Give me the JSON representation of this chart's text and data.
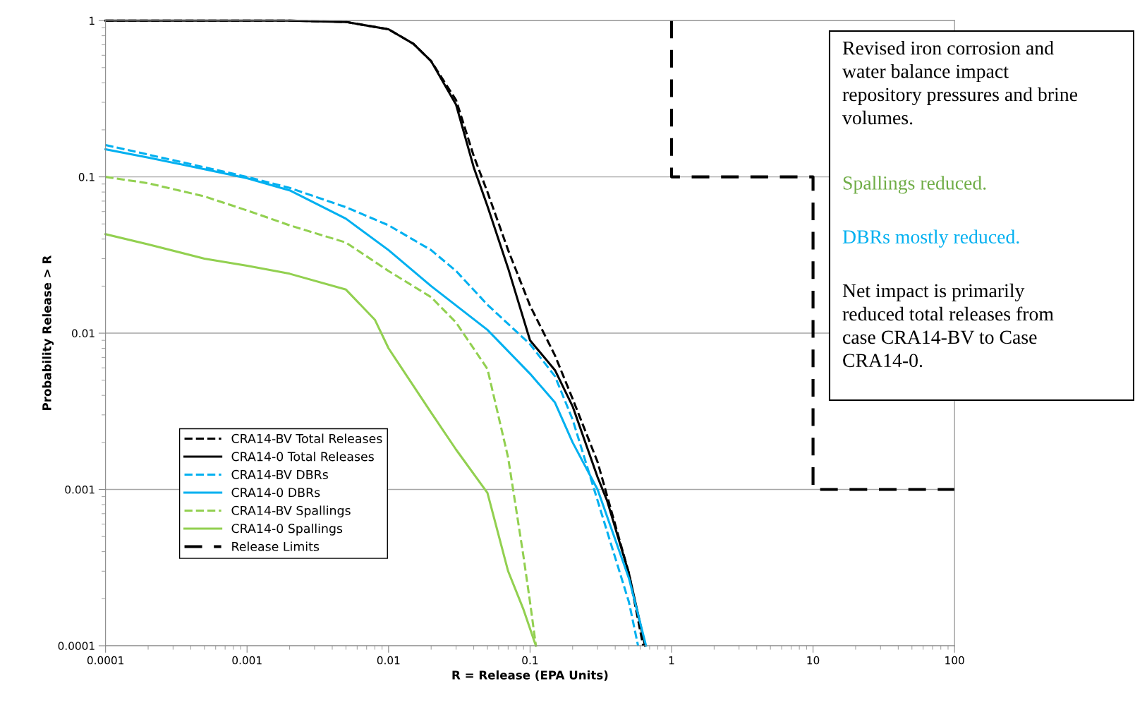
{
  "chart_data": {
    "type": "line",
    "xlabel": "R = Release (EPA Units)",
    "ylabel": "Probability Release > R",
    "log": "xy",
    "xlim": [
      0.0001,
      100
    ],
    "ylim": [
      0.0001,
      1
    ],
    "xticks": [
      0.0001,
      0.001,
      0.01,
      0.1,
      1,
      10,
      100
    ],
    "yticks": [
      0.0001,
      0.001,
      0.01,
      0.1,
      1
    ],
    "grid": "y",
    "legend": "bottom left",
    "series": [
      {
        "name": "CRA14-BV Total Releases",
        "color": "#000000",
        "line_style": "dashed",
        "x": [
          0.0001,
          0.002,
          0.005,
          0.01,
          0.015,
          0.02,
          0.03,
          0.04,
          0.05,
          0.07,
          0.1,
          0.15,
          0.2,
          0.3,
          0.5,
          0.63
        ],
        "values": [
          1,
          1,
          0.98,
          0.88,
          0.71,
          0.55,
          0.31,
          0.136,
          0.08,
          0.034,
          0.015,
          0.0072,
          0.0038,
          0.0015,
          0.00029,
          0.0001
        ]
      },
      {
        "name": "CRA14-0 Total Releases",
        "color": "#000000",
        "line_style": "solid",
        "x": [
          0.0001,
          0.002,
          0.005,
          0.01,
          0.015,
          0.02,
          0.03,
          0.04,
          0.05,
          0.07,
          0.1,
          0.15,
          0.2,
          0.3,
          0.35,
          0.5,
          0.65
        ],
        "values": [
          1,
          1,
          0.98,
          0.88,
          0.71,
          0.55,
          0.29,
          0.115,
          0.065,
          0.026,
          0.009,
          0.0058,
          0.0034,
          0.0012,
          0.00085,
          0.00029,
          0.0001
        ]
      },
      {
        "name": "CRA14-BV DBRs",
        "color": "#00b0f0",
        "line_style": "dashed",
        "x": [
          0.0001,
          0.001,
          0.002,
          0.005,
          0.01,
          0.02,
          0.03,
          0.05,
          0.1,
          0.15,
          0.2,
          0.3,
          0.5,
          0.58
        ],
        "values": [
          0.16,
          0.1,
          0.085,
          0.064,
          0.049,
          0.034,
          0.025,
          0.0152,
          0.0085,
          0.0053,
          0.0028,
          0.00085,
          0.00019,
          0.0001
        ]
      },
      {
        "name": "CRA14-0 DBRs",
        "color": "#00b0f0",
        "line_style": "solid",
        "x": [
          0.0001,
          0.0002,
          0.0005,
          0.001,
          0.002,
          0.005,
          0.01,
          0.02,
          0.05,
          0.1,
          0.15,
          0.2,
          0.3,
          0.5,
          0.66
        ],
        "values": [
          0.15,
          0.133,
          0.112,
          0.098,
          0.082,
          0.054,
          0.034,
          0.02,
          0.0105,
          0.0055,
          0.0036,
          0.002,
          0.001,
          0.00027,
          0.0001
        ]
      },
      {
        "name": "CRA14-BV Spallings",
        "color": "#92d050",
        "line_style": "dashed",
        "x": [
          0.0001,
          0.0002,
          0.0005,
          0.001,
          0.002,
          0.005,
          0.01,
          0.02,
          0.03,
          0.05,
          0.07,
          0.09,
          0.1,
          0.11
        ],
        "values": [
          0.1,
          0.091,
          0.075,
          0.061,
          0.049,
          0.038,
          0.025,
          0.017,
          0.0117,
          0.0059,
          0.0016,
          0.00037,
          0.00019,
          0.0001
        ]
      },
      {
        "name": "CRA14-0 Spallings",
        "color": "#92d050",
        "line_style": "solid",
        "x": [
          0.0001,
          0.0002,
          0.0005,
          0.001,
          0.002,
          0.005,
          0.008,
          0.01,
          0.02,
          0.03,
          0.05,
          0.07,
          0.09,
          0.11
        ],
        "values": [
          0.043,
          0.037,
          0.03,
          0.027,
          0.024,
          0.019,
          0.0122,
          0.008,
          0.0031,
          0.0018,
          0.00095,
          0.0003,
          0.00017,
          0.0001
        ]
      },
      {
        "name": "Release Limits",
        "color": "#000000",
        "line_style": "dashed",
        "x": [
          1,
          1,
          10,
          10,
          100
        ],
        "values": [
          1,
          0.1,
          0.1,
          0.001,
          0.001
        ]
      }
    ],
    "annotations": [
      "Revised iron corrosion and\nwater balance impact\nrepository pressures and brine\nvolumes.",
      "Spallings reduced.",
      "DBRs mostly reduced.",
      "Net impact is primarily\nreduced total releases from\ncase CRA14-BV to Case\nCRA14-0."
    ]
  }
}
